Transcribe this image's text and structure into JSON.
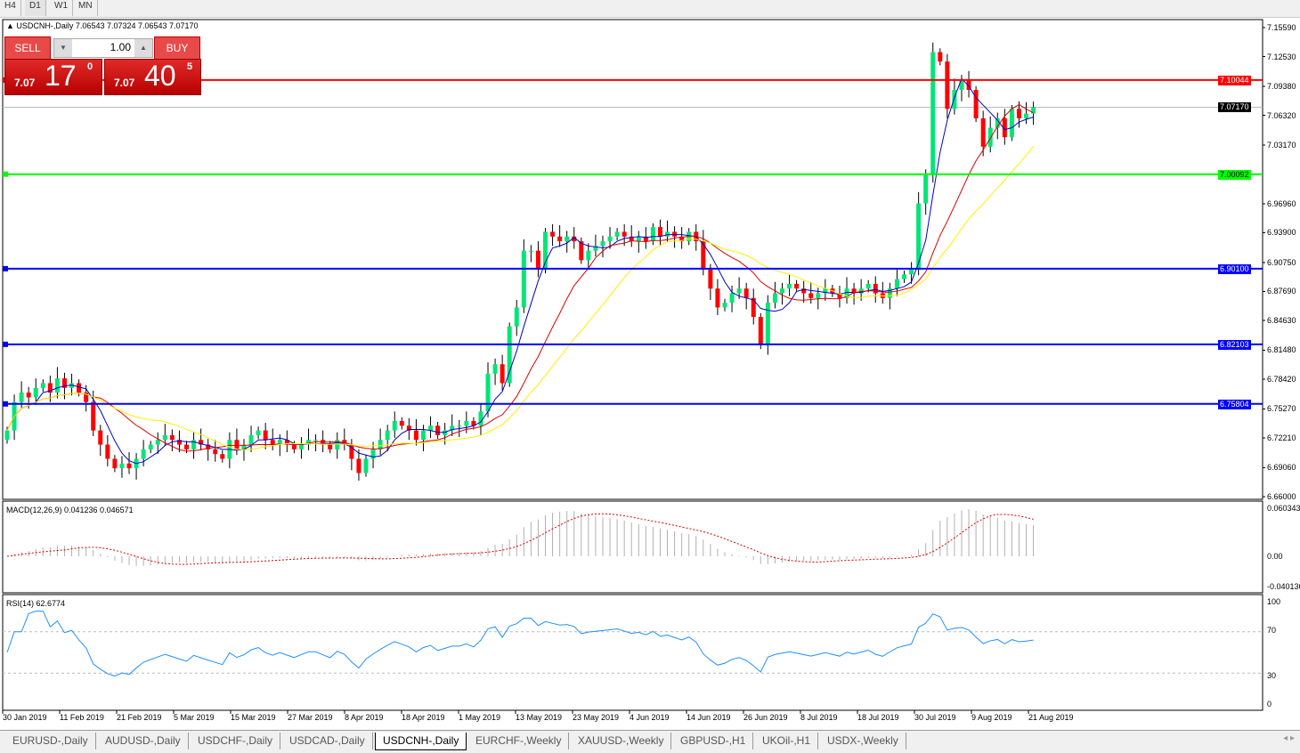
{
  "toolbar": {
    "timeframes": [
      "H4",
      "D1",
      "W1",
      "MN"
    ],
    "active": "D1"
  },
  "chart": {
    "title": "USDCNH-,Daily  7.06543 7.07324 7.06543 7.07170",
    "symbol": "USDCNH-",
    "timeframe": "Daily",
    "ohlc": {
      "open": "7.06543",
      "high": "7.07324",
      "low": "7.06543",
      "close": "7.07170"
    },
    "price_axis": [
      "7.15590",
      "7.12530",
      "7.09380",
      "7.06320",
      "7.03170",
      "6.96960",
      "6.93900",
      "6.90750",
      "6.87690",
      "6.84630",
      "6.81480",
      "6.78420",
      "6.75270",
      "6.72210",
      "6.69060",
      "6.66000"
    ],
    "current_price": "7.07170",
    "levels": [
      {
        "value": "7.10044",
        "color": "#ff0000"
      },
      {
        "value": "7.00092",
        "color": "#00ff00"
      },
      {
        "value": "6.90100",
        "color": "#0000ff"
      },
      {
        "value": "6.82103",
        "color": "#0000ff"
      },
      {
        "value": "6.75804",
        "color": "#0000ff"
      }
    ],
    "colors": {
      "bull": "#00e676",
      "bear": "#ff0000",
      "ma_fast": "#0000cc",
      "ma_mid": "#dd0000",
      "ma_slow": "#ffee00"
    },
    "closes": [
      6.73,
      6.76,
      6.77,
      6.765,
      6.775,
      6.78,
      6.77,
      6.785,
      6.775,
      6.78,
      6.77,
      6.76,
      6.73,
      6.715,
      6.7,
      6.69,
      6.695,
      6.69,
      6.7,
      6.71,
      6.715,
      6.72,
      6.725,
      6.72,
      6.715,
      6.71,
      6.72,
      6.715,
      6.71,
      6.705,
      6.7,
      6.72,
      6.71,
      6.715,
      6.725,
      6.73,
      6.72,
      6.715,
      6.72,
      6.715,
      6.71,
      6.715,
      6.72,
      6.72,
      6.715,
      6.71,
      6.72,
      6.715,
      6.7,
      6.685,
      6.7,
      6.71,
      6.72,
      6.73,
      6.74,
      6.735,
      6.73,
      6.72,
      6.73,
      6.735,
      6.725,
      6.73,
      6.735,
      6.735,
      6.74,
      6.735,
      6.75,
      6.79,
      6.8,
      6.78,
      6.84,
      6.86,
      6.92,
      6.92,
      6.9,
      6.94,
      6.935,
      6.93,
      6.935,
      6.93,
      6.91,
      6.92,
      6.925,
      6.93,
      6.935,
      6.94,
      6.935,
      6.93,
      6.935,
      6.93,
      6.945,
      6.935,
      6.94,
      6.935,
      6.93,
      6.94,
      6.93,
      6.9,
      6.88,
      6.86,
      6.865,
      6.875,
      6.88,
      6.87,
      6.85,
      6.82,
      6.865,
      6.875,
      6.88,
      6.885,
      6.88,
      6.875,
      6.87,
      6.875,
      6.88,
      6.875,
      6.87,
      6.88,
      6.875,
      6.88,
      6.885,
      6.875,
      6.87,
      6.88,
      6.89,
      6.895,
      6.9,
      6.97,
      7.0,
      7.13,
      7.12,
      7.07,
      7.09,
      7.1,
      7.09,
      7.06,
      7.03,
      7.05,
      7.06,
      7.04,
      7.07,
      7.06,
      7.065,
      7.0717
    ]
  },
  "trade": {
    "sell_label": "SELL",
    "buy_label": "BUY",
    "lot": "1.00",
    "sell": {
      "prefix": "7.07",
      "big": "17",
      "sup": "0"
    },
    "buy": {
      "prefix": "7.07",
      "big": "40",
      "sup": "5"
    }
  },
  "macd": {
    "label": "MACD(12,26,9) 0.041236 0.046571",
    "axis": [
      "0.060343",
      "0.00",
      "-0.040136"
    ]
  },
  "rsi": {
    "label": "RSI(14) 62.6774",
    "axis": [
      "100",
      "70",
      "30",
      "0"
    ]
  },
  "time_axis": [
    "30 Jan 2019",
    "11 Feb 2019",
    "21 Feb 2019",
    "5 Mar 2019",
    "15 Mar 2019",
    "27 Mar 2019",
    "8 Apr 2019",
    "18 Apr 2019",
    "1 May 2019",
    "13 May 2019",
    "23 May 2019",
    "4 Jun 2019",
    "14 Jun 2019",
    "26 Jun 2019",
    "8 Jul 2019",
    "18 Jul 2019",
    "30 Jul 2019",
    "9 Aug 2019",
    "21 Aug 2019"
  ],
  "tabs": [
    "EURUSD-,Daily",
    "AUDUSD-,Daily",
    "USDCHF-,Daily",
    "USDCAD-,Daily",
    "USDCNH-,Daily",
    "EURCHF-,Weekly",
    "XAUUSD-,Weekly",
    "GBPUSD-,H1",
    "UKOil-,H1",
    "USDX-,Weekly"
  ],
  "active_tab": "USDCNH-,Daily"
}
